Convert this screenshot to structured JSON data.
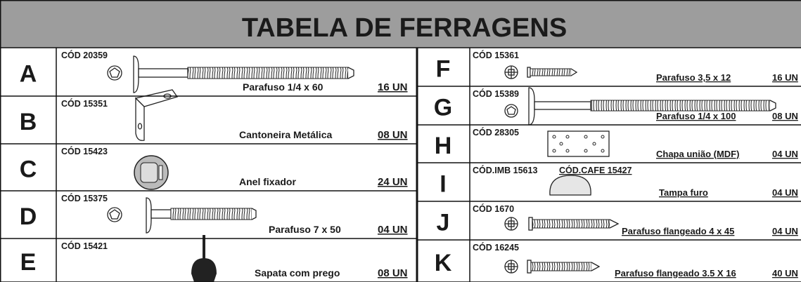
{
  "title": "TABELA DE FERRAGENS",
  "left_items": [
    {
      "letter": "A",
      "codes": [
        "CÓD 20359"
      ],
      "description": "Parafuso 1/4 x 60",
      "quantity": "16 UN"
    },
    {
      "letter": "B",
      "codes": [
        "CÓD 15351"
      ],
      "description": "Cantoneira Metálica",
      "quantity": "08 UN"
    },
    {
      "letter": "C",
      "codes": [
        "CÓD 15423"
      ],
      "description": "Anel fixador",
      "quantity": "24 UN"
    },
    {
      "letter": "D",
      "codes": [
        "CÓD 15375"
      ],
      "description": "Parafuso 7 x 50",
      "quantity": "04 UN"
    },
    {
      "letter": "E",
      "codes": [
        "CÓD 15421"
      ],
      "description": "Sapata com prego",
      "quantity": "08 UN"
    }
  ],
  "right_items": [
    {
      "letter": "F",
      "codes": [
        "CÓD 15361"
      ],
      "description": "Parafuso 3,5 x 12",
      "quantity": "16 UN"
    },
    {
      "letter": "G",
      "codes": [
        "CÓD 15389"
      ],
      "description": "Parafuso 1/4 x 100",
      "quantity": "08 UN"
    },
    {
      "letter": "H",
      "codes": [
        "CÓD 28305"
      ],
      "description": "Chapa união (MDF)",
      "quantity": "04 UN"
    },
    {
      "letter": "I",
      "codes": [
        "CÓD.IMB 15613",
        "CÓD.CAFE 15427"
      ],
      "description": "Tampa furo",
      "quantity": "04 UN"
    },
    {
      "letter": "J",
      "codes": [
        "CÓD 1670"
      ],
      "description": "Parafuso flangeado 4 x 45",
      "quantity": "04 UN"
    },
    {
      "letter": "K",
      "codes": [
        "CÓD 16245"
      ],
      "description": "Parafuso flangeado 3.5 X 16",
      "quantity": "40 UN"
    }
  ]
}
